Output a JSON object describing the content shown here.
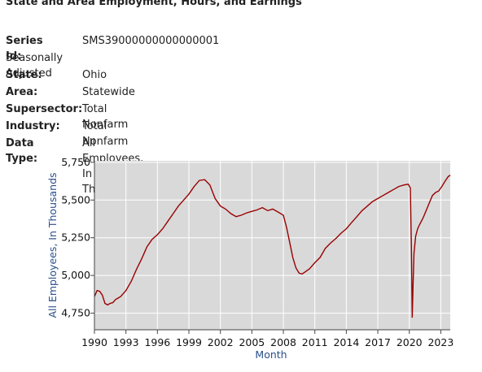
{
  "page": {
    "title": "State and Area Employment, Hours, and Earnings"
  },
  "metadata": {
    "series_id": {
      "label": "Series Id:",
      "value": "SMS39000000000000001"
    },
    "seasonal": "Seasonally Adjusted",
    "rows": [
      {
        "label": "State:",
        "value": "Ohio"
      },
      {
        "label": "Area:",
        "value": "Statewide"
      },
      {
        "label": "Supersector:",
        "value": "Total Nonfarm"
      },
      {
        "label": "Industry:",
        "value": "Total Nonfarm"
      },
      {
        "label": "Data Type:",
        "value": "All Employees, In Thousands"
      }
    ]
  },
  "chart_data": {
    "type": "line",
    "xlabel": "Month",
    "ylabel": "All Employees, In Thousands",
    "xlim": [
      1990.0,
      2023.9
    ],
    "ylim": [
      4640,
      5760
    ],
    "xticks": [
      1990,
      1993,
      1996,
      1999,
      2002,
      2005,
      2008,
      2011,
      2014,
      2017,
      2020,
      2023
    ],
    "xtick_labels": [
      "1990",
      "1993",
      "1996",
      "1999",
      "2002",
      "2005",
      "2008",
      "2011",
      "2014",
      "2017",
      "2020",
      "2023"
    ],
    "yticks": [
      4750,
      5000,
      5250,
      5500,
      5750
    ],
    "ytick_labels": [
      "4,750",
      "5,000",
      "5,250",
      "5,500",
      "5,750"
    ],
    "grid": true,
    "colors": {
      "line": "#990000",
      "plot_bg": "#d9d9d9",
      "grid": "#ffffff",
      "axis_label": "#2a4f8a"
    },
    "series": [
      {
        "points": [
          [
            1990.0,
            4860
          ],
          [
            1990.25,
            4900
          ],
          [
            1990.5,
            4895
          ],
          [
            1990.75,
            4870
          ],
          [
            1991.0,
            4815
          ],
          [
            1991.25,
            4805
          ],
          [
            1991.5,
            4815
          ],
          [
            1991.75,
            4820
          ],
          [
            1992.0,
            4840
          ],
          [
            1992.25,
            4850
          ],
          [
            1992.5,
            4860
          ],
          [
            1992.75,
            4880
          ],
          [
            1993.0,
            4900
          ],
          [
            1993.5,
            4960
          ],
          [
            1994.0,
            5040
          ],
          [
            1994.5,
            5110
          ],
          [
            1995.0,
            5190
          ],
          [
            1995.5,
            5240
          ],
          [
            1996.0,
            5270
          ],
          [
            1996.5,
            5310
          ],
          [
            1997.0,
            5360
          ],
          [
            1997.5,
            5410
          ],
          [
            1998.0,
            5460
          ],
          [
            1998.5,
            5500
          ],
          [
            1999.0,
            5540
          ],
          [
            1999.5,
            5590
          ],
          [
            2000.0,
            5630
          ],
          [
            2000.5,
            5635
          ],
          [
            2001.0,
            5600
          ],
          [
            2001.25,
            5555
          ],
          [
            2001.5,
            5510
          ],
          [
            2002.0,
            5460
          ],
          [
            2002.5,
            5440
          ],
          [
            2003.0,
            5410
          ],
          [
            2003.5,
            5390
          ],
          [
            2004.0,
            5400
          ],
          [
            2004.5,
            5415
          ],
          [
            2005.0,
            5425
          ],
          [
            2005.5,
            5435
          ],
          [
            2006.0,
            5450
          ],
          [
            2006.5,
            5430
          ],
          [
            2007.0,
            5440
          ],
          [
            2007.5,
            5420
          ],
          [
            2008.0,
            5400
          ],
          [
            2008.3,
            5320
          ],
          [
            2008.6,
            5220
          ],
          [
            2008.9,
            5120
          ],
          [
            2009.2,
            5050
          ],
          [
            2009.5,
            5015
          ],
          [
            2009.8,
            5010
          ],
          [
            2010.0,
            5020
          ],
          [
            2010.5,
            5045
          ],
          [
            2011.0,
            5085
          ],
          [
            2011.5,
            5120
          ],
          [
            2012.0,
            5180
          ],
          [
            2012.5,
            5215
          ],
          [
            2013.0,
            5245
          ],
          [
            2013.5,
            5280
          ],
          [
            2014.0,
            5310
          ],
          [
            2014.5,
            5350
          ],
          [
            2015.0,
            5390
          ],
          [
            2015.5,
            5430
          ],
          [
            2016.0,
            5460
          ],
          [
            2016.5,
            5490
          ],
          [
            2017.0,
            5510
          ],
          [
            2017.5,
            5530
          ],
          [
            2018.0,
            5550
          ],
          [
            2018.5,
            5570
          ],
          [
            2019.0,
            5590
          ],
          [
            2019.5,
            5600
          ],
          [
            2019.9,
            5605
          ],
          [
            2020.1,
            5580
          ],
          [
            2020.2,
            5180
          ],
          [
            2020.28,
            4720
          ],
          [
            2020.36,
            4950
          ],
          [
            2020.45,
            5150
          ],
          [
            2020.6,
            5260
          ],
          [
            2020.8,
            5310
          ],
          [
            2021.0,
            5340
          ],
          [
            2021.3,
            5380
          ],
          [
            2021.6,
            5430
          ],
          [
            2021.9,
            5480
          ],
          [
            2022.2,
            5530
          ],
          [
            2022.5,
            5550
          ],
          [
            2022.8,
            5560
          ],
          [
            2023.1,
            5590
          ],
          [
            2023.4,
            5625
          ],
          [
            2023.7,
            5655
          ],
          [
            2023.9,
            5665
          ]
        ]
      }
    ]
  }
}
